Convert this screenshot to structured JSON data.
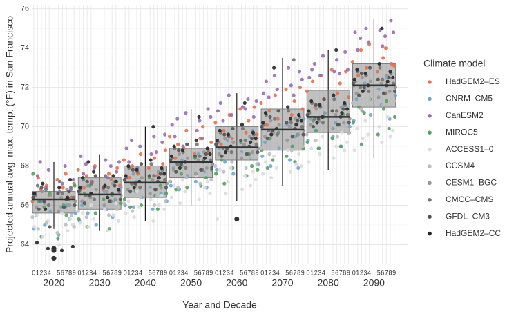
{
  "chart_data": {
    "type": "box",
    "ylabel": "Projected annual avg. max. temp. (°F) in San Francisco",
    "xlabel": "Year and Decade",
    "legend_title": "Climate model",
    "categories": [
      "2020",
      "2030",
      "2040",
      "2050",
      "2060",
      "2070",
      "2080",
      "2090"
    ],
    "year_labels": [
      "0",
      "1",
      "2",
      "3",
      "4",
      "5",
      "6",
      "7",
      "8",
      "9"
    ],
    "ylim": [
      63,
      76.2
    ],
    "yticks": [
      64,
      66,
      68,
      70,
      72,
      74,
      76
    ],
    "grid": true,
    "minor_grid": true,
    "boxes": [
      {
        "whisker_low": 64.8,
        "q1": 65.6,
        "median": 66.3,
        "q3": 66.7,
        "whisker_high": 68.2,
        "outliers": [
          63.8,
          63.7,
          63.3
        ]
      },
      {
        "whisker_low": 64.7,
        "q1": 65.8,
        "median": 66.55,
        "q3": 67.4,
        "whisker_high": 68.6,
        "outliers": []
      },
      {
        "whisker_low": 65.2,
        "q1": 66.4,
        "median": 67.15,
        "q3": 68.0,
        "whisker_high": 70.0,
        "outliers": []
      },
      {
        "whisker_low": 66.0,
        "q1": 67.4,
        "median": 68.2,
        "q3": 68.9,
        "whisker_high": 70.9,
        "outliers": []
      },
      {
        "whisker_low": 66.2,
        "q1": 68.3,
        "median": 68.95,
        "q3": 70.0,
        "whisker_high": 71.7,
        "outliers": [
          65.3
        ]
      },
      {
        "whisker_low": 67.0,
        "q1": 68.8,
        "median": 69.85,
        "q3": 70.9,
        "whisker_high": 73.5,
        "outliers": []
      },
      {
        "whisker_low": 67.8,
        "q1": 69.7,
        "median": 70.5,
        "q3": 71.85,
        "whisker_high": 73.9,
        "outliers": []
      },
      {
        "whisker_low": 68.4,
        "q1": 71.0,
        "median": 72.1,
        "q3": 73.2,
        "whisker_high": 75.5,
        "outliers": []
      }
    ],
    "series": [
      {
        "name": "HadGEM2–ES",
        "color": "#e8704a",
        "values": [
          66.2,
          67.4,
          66.8,
          67.0,
          66.5,
          67.3,
          66.9,
          67.6,
          66.4,
          67.1,
          67.8,
          66.9,
          67.5,
          67.2,
          68.0,
          66.8,
          67.6,
          67.3,
          67.9,
          67.0,
          68.3,
          67.4,
          68.0,
          67.6,
          68.6,
          67.9,
          68.4,
          67.5,
          68.1,
          68.8,
          69.5,
          68.4,
          69.1,
          68.9,
          69.8,
          68.6,
          69.4,
          70.0,
          68.7,
          69.2,
          70.2,
          69.1,
          69.8,
          70.6,
          69.4,
          70.9,
          69.7,
          70.3,
          71.0,
          69.6,
          71.2,
          70.1,
          70.8,
          71.6,
          70.4,
          71.9,
          70.6,
          71.3,
          72.0,
          70.9,
          71.8,
          72.3,
          71.0,
          72.6,
          71.4,
          72.9,
          71.7,
          72.2,
          72.8,
          71.5,
          73.3,
          72.6,
          73.9,
          73.0,
          74.2,
          72.8,
          73.5,
          74.0,
          73.2,
          73.1
        ]
      },
      {
        "name": "CNRM–CM5",
        "color": "#6fa6d0",
        "values": [
          64.8,
          65.5,
          66.2,
          65.0,
          65.7,
          64.5,
          65.9,
          66.0,
          65.3,
          65.6,
          65.2,
          66.0,
          65.6,
          66.4,
          65.0,
          66.7,
          65.8,
          65.4,
          66.2,
          66.9,
          66.0,
          66.8,
          65.9,
          67.2,
          66.4,
          66.9,
          65.8,
          67.4,
          66.6,
          66.2,
          67.0,
          67.9,
          66.8,
          68.3,
          67.5,
          67.2,
          68.6,
          67.7,
          66.9,
          68.1,
          67.8,
          68.9,
          68.2,
          69.3,
          67.6,
          68.7,
          69.0,
          68.4,
          69.8,
          68.1,
          68.5,
          69.2,
          68.0,
          69.8,
          68.9,
          70.1,
          68.3,
          69.5,
          67.9,
          70.4,
          69.3,
          70.4,
          69.8,
          68.9,
          70.7,
          69.5,
          70.2,
          69.0,
          71.1,
          70.0,
          70.3,
          71.4,
          70.8,
          72.2,
          70.6,
          71.9,
          71.1,
          72.5,
          70.4,
          71.6
        ]
      },
      {
        "name": "CanESM2",
        "color": "#9a6bb0",
        "values": [
          66.6,
          67.5,
          68.2,
          66.9,
          67.8,
          66.7,
          67.1,
          68.0,
          66.8,
          67.3,
          68.5,
          67.6,
          68.1,
          67.2,
          67.9,
          68.3,
          67.4,
          68.0,
          67.7,
          68.2,
          68.9,
          68.2,
          69.3,
          67.9,
          69.0,
          68.6,
          69.5,
          68.7,
          69.2,
          69.6,
          70.1,
          69.5,
          70.4,
          69.0,
          70.7,
          69.8,
          70.3,
          69.4,
          70.9,
          70.5,
          70.8,
          71.2,
          70.3,
          71.6,
          70.6,
          71.0,
          70.9,
          71.4,
          70.5,
          71.3,
          71.7,
          72.3,
          71.5,
          72.6,
          71.9,
          73.0,
          72.1,
          71.6,
          72.8,
          72.4,
          72.5,
          72.9,
          73.2,
          72.6,
          73.6,
          72.8,
          73.4,
          72.7,
          73.8,
          72.9,
          74.8,
          73.9,
          74.5,
          75.0,
          74.3,
          74.9,
          74.1,
          74.6,
          75.4,
          74.8
        ]
      },
      {
        "name": "MIROC5",
        "color": "#55a060",
        "values": [
          67.6,
          66.2,
          64.4,
          65.9,
          66.6,
          64.3,
          66.0,
          65.5,
          66.3,
          67.0,
          65.3,
          66.6,
          64.9,
          67.0,
          65.6,
          66.3,
          64.8,
          66.5,
          67.2,
          66.1,
          66.3,
          65.9,
          67.1,
          66.7,
          66.0,
          67.4,
          66.5,
          65.8,
          67.0,
          66.6,
          67.2,
          66.8,
          68.1,
          67.6,
          66.9,
          68.4,
          67.0,
          68.3,
          67.4,
          67.8,
          67.6,
          68.3,
          67.1,
          68.8,
          67.9,
          69.2,
          67.5,
          68.6,
          68.0,
          67.8,
          68.8,
          67.9,
          69.4,
          68.3,
          69.7,
          68.5,
          69.0,
          68.2,
          69.6,
          68.9,
          69.2,
          70.3,
          69.8,
          68.9,
          70.5,
          69.4,
          70.1,
          69.0,
          70.6,
          69.7,
          70.2,
          71.0,
          69.1,
          70.7,
          71.4,
          69.6,
          70.9,
          71.3,
          69.9,
          70.5
        ]
      },
      {
        "name": "ACCESS1–0",
        "color": "#dcdcdc",
        "values": [
          64.9,
          65.5,
          64.4,
          65.8,
          65.2,
          64.0,
          65.6,
          64.7,
          65.3,
          65.0,
          65.1,
          65.6,
          64.9,
          66.0,
          65.3,
          65.8,
          64.7,
          65.5,
          66.1,
          65.2,
          65.6,
          66.2,
          65.4,
          66.7,
          65.9,
          66.3,
          65.2,
          66.0,
          66.5,
          65.8,
          66.4,
          67.0,
          66.1,
          67.3,
          66.7,
          67.5,
          66.3,
          66.9,
          67.2,
          66.6,
          65.3,
          67.8,
          66.6,
          67.2,
          67.9,
          66.8,
          67.5,
          67.0,
          67.7,
          67.3,
          67.6,
          68.2,
          67.4,
          68.5,
          67.9,
          68.8,
          67.7,
          68.1,
          68.6,
          68.0,
          68.2,
          68.9,
          69.3,
          68.6,
          69.5,
          68.4,
          69.0,
          69.7,
          68.8,
          69.2,
          68.8,
          69.9,
          69.4,
          70.3,
          69.6,
          70.0,
          69.2,
          70.5,
          69.5,
          69.8
        ]
      },
      {
        "name": "CCSM4",
        "color": "#bdbdbd",
        "values": [
          65.4,
          64.8,
          65.9,
          65.1,
          66.2,
          64.6,
          65.7,
          65.0,
          65.5,
          64.9,
          65.7,
          66.2,
          65.4,
          66.5,
          65.9,
          66.0,
          65.5,
          66.3,
          65.8,
          66.4,
          66.1,
          66.6,
          65.7,
          67.0,
          66.4,
          66.8,
          66.0,
          66.5,
          66.9,
          66.2,
          67.2,
          67.7,
          66.9,
          68.0,
          67.4,
          67.8,
          67.1,
          67.6,
          68.1,
          67.3,
          68.0,
          68.5,
          67.7,
          68.8,
          68.2,
          68.6,
          67.9,
          68.4,
          68.9,
          68.1,
          68.9,
          69.4,
          68.6,
          69.7,
          69.1,
          69.5,
          68.8,
          69.3,
          69.8,
          69.0,
          69.6,
          70.1,
          69.3,
          70.4,
          69.8,
          70.2,
          69.5,
          70.0,
          70.5,
          69.7,
          71.2,
          71.7,
          70.9,
          72.0,
          71.4,
          71.8,
          71.1,
          71.6,
          72.1,
          71.3
        ]
      },
      {
        "name": "CESM1–BGC",
        "color": "#969696",
        "values": [
          66.3,
          65.9,
          66.7,
          66.1,
          66.5,
          65.7,
          66.4,
          66.8,
          66.0,
          66.2,
          66.6,
          66.2,
          67.0,
          66.4,
          66.8,
          66.0,
          66.7,
          67.1,
          66.3,
          66.5,
          67.2,
          66.8,
          67.6,
          67.0,
          67.4,
          66.6,
          67.3,
          67.7,
          66.9,
          67.1,
          68.2,
          67.8,
          68.6,
          68.0,
          68.4,
          67.6,
          68.3,
          68.7,
          67.9,
          68.1,
          69.0,
          68.6,
          69.4,
          68.8,
          69.2,
          68.4,
          69.1,
          69.5,
          68.7,
          68.9,
          69.9,
          69.5,
          70.3,
          69.7,
          70.1,
          69.3,
          70.0,
          70.4,
          69.6,
          69.8,
          70.5,
          70.1,
          70.9,
          70.3,
          70.7,
          69.9,
          70.6,
          71.0,
          70.2,
          70.4,
          72.1,
          71.7,
          72.5,
          71.9,
          72.3,
          71.5,
          72.2,
          72.6,
          71.8,
          72.0
        ]
      },
      {
        "name": "CMCC–CMS",
        "color": "#737373",
        "values": [
          66.5,
          67.0,
          66.2,
          66.8,
          66.0,
          67.2,
          66.6,
          65.9,
          66.9,
          66.4,
          66.8,
          67.3,
          66.5,
          67.1,
          66.3,
          67.5,
          66.9,
          66.2,
          67.2,
          66.7,
          67.4,
          67.9,
          67.1,
          67.7,
          66.9,
          68.1,
          67.5,
          66.8,
          67.8,
          67.3,
          68.4,
          68.9,
          68.1,
          68.7,
          67.9,
          69.1,
          68.5,
          67.8,
          68.8,
          68.3,
          69.2,
          69.7,
          68.9,
          69.5,
          68.7,
          69.9,
          69.3,
          68.6,
          69.6,
          69.1,
          70.1,
          70.6,
          69.8,
          70.4,
          69.6,
          70.8,
          70.2,
          73.4,
          70.5,
          70.0,
          70.7,
          71.2,
          70.4,
          71.0,
          70.2,
          71.4,
          70.8,
          70.1,
          71.1,
          70.6,
          72.3,
          72.8,
          72.0,
          72.6,
          71.8,
          73.0,
          72.4,
          71.7,
          72.7,
          72.2
        ]
      },
      {
        "name": "GFDL–CM3",
        "color": "#525252",
        "values": [
          66.4,
          65.8,
          66.9,
          66.2,
          64.9,
          66.6,
          65.9,
          66.3,
          66.7,
          66.0,
          66.7,
          66.1,
          67.2,
          66.5,
          67.5,
          66.9,
          66.2,
          66.6,
          67.0,
          66.3,
          67.3,
          66.7,
          67.8,
          67.1,
          68.1,
          67.5,
          66.8,
          67.2,
          67.6,
          66.9,
          68.3,
          67.7,
          68.8,
          68.1,
          69.1,
          68.5,
          67.8,
          68.2,
          68.6,
          67.9,
          69.1,
          68.5,
          69.6,
          68.9,
          69.9,
          69.3,
          68.6,
          69.0,
          69.4,
          68.7,
          70.0,
          69.4,
          70.5,
          69.8,
          70.8,
          70.2,
          69.5,
          69.9,
          70.3,
          69.6,
          70.6,
          70.0,
          71.1,
          70.4,
          71.4,
          70.8,
          70.1,
          70.5,
          70.9,
          70.2,
          72.2,
          71.6,
          72.7,
          72.0,
          73.0,
          72.4,
          71.7,
          72.1,
          72.5,
          71.8
        ]
      },
      {
        "name": "HadGEM2–CC",
        "color": "#252525",
        "values": [
          66.6,
          64.1,
          67.1,
          65.8,
          63.8,
          66.9,
          63.7,
          66.4,
          67.3,
          63.9,
          66.9,
          67.4,
          68.2,
          66.6,
          67.7,
          67.0,
          66.4,
          67.5,
          67.2,
          66.8,
          67.5,
          68.0,
          66.9,
          67.8,
          67.2,
          68.3,
          70.0,
          67.4,
          67.9,
          67.6,
          68.5,
          69.0,
          67.9,
          68.8,
          68.2,
          69.3,
          70.5,
          68.4,
          68.9,
          68.6,
          69.3,
          69.8,
          68.7,
          69.6,
          69.0,
          70.1,
          71.2,
          69.2,
          69.7,
          69.4,
          70.2,
          70.7,
          69.6,
          73.0,
          69.9,
          71.0,
          70.4,
          70.1,
          70.6,
          70.3,
          70.8,
          71.3,
          70.2,
          71.1,
          70.5,
          71.6,
          73.9,
          70.7,
          71.2,
          70.9,
          72.4,
          72.9,
          71.8,
          72.7,
          72.1,
          73.2,
          75.0,
          72.3,
          72.8,
          72.5
        ]
      }
    ]
  }
}
